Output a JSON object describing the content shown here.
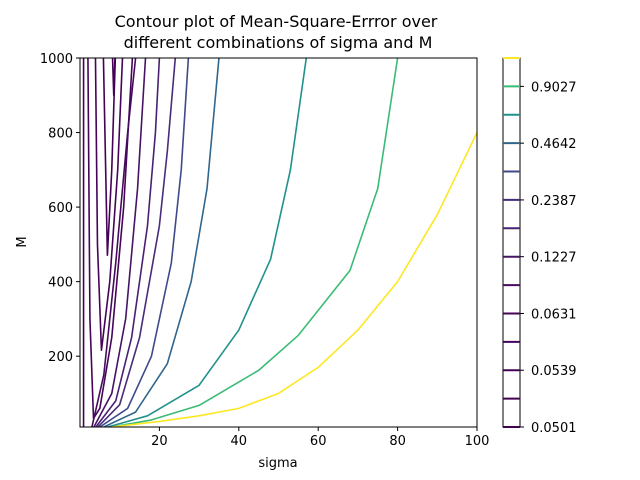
{
  "chart_data": {
    "type": "contour",
    "title": [
      "Contour plot of Mean-Square-Errror over",
      "different combinations of sigma and M"
    ],
    "xlabel": "sigma",
    "ylabel": "M",
    "xlim": [
      0,
      100
    ],
    "xticks": [
      20,
      40,
      60,
      80,
      100
    ],
    "ylim": [
      10,
      1000
    ],
    "yticks": [
      200,
      400,
      600,
      800,
      1000
    ],
    "colorbar_ticks": [
      0.0501,
      0.0539,
      0.0631,
      0.1227,
      0.2387,
      0.4642,
      0.9027
    ],
    "series": [
      {
        "level": 0.0501,
        "color": "#440154",
        "x": [
          0.9,
          0.9
        ],
        "y": [
          10,
          1000
        ]
      },
      {
        "level": 0.052,
        "color": "#440255",
        "x": [
          8.2,
          8.5,
          8.8
        ],
        "y": [
          1000,
          900,
          1000
        ]
      },
      {
        "level": 0.0539,
        "color": "#440256",
        "x": [
          5.9,
          6.9,
          8.0,
          8.9
        ],
        "y": [
          1000,
          471,
          700,
          1000
        ]
      },
      {
        "level": 0.058,
        "color": "#450457",
        "x": [
          3.9,
          4.4,
          5.4,
          7.5,
          9.5,
          10.7
        ],
        "y": [
          1000,
          500,
          216,
          400,
          700,
          1000
        ]
      },
      {
        "level": 0.0631,
        "color": "#450559",
        "x": [
          2,
          2.5,
          3.4,
          5,
          8,
          11,
          13.2
        ],
        "y": [
          1000,
          300,
          33,
          60,
          250,
          600,
          1000
        ]
      },
      {
        "level": 0.088,
        "color": "#460b5e",
        "x": [
          3,
          6,
          9,
          12,
          14
        ],
        "y": [
          10,
          150,
          450,
          800,
          1000
        ]
      },
      {
        "level": 0.1227,
        "color": "#471365",
        "x": [
          3.5,
          8,
          11.5,
          14.5,
          16.5
        ],
        "y": [
          10,
          100,
          300,
          650,
          1000
        ]
      },
      {
        "level": 0.1711,
        "color": "#482173",
        "x": [
          4,
          9,
          13,
          17,
          19,
          20
        ],
        "y": [
          10,
          80,
          250,
          550,
          800,
          1000
        ]
      },
      {
        "level": 0.2387,
        "color": "#472c7a",
        "x": [
          4.5,
          10,
          15,
          20,
          22,
          24
        ],
        "y": [
          10,
          70,
          250,
          550,
          750,
          1000
        ]
      },
      {
        "level": 0.3329,
        "color": "#3e4a89",
        "x": [
          5,
          12,
          18,
          23,
          25.5,
          27.3
        ],
        "y": [
          10,
          60,
          200,
          450,
          700,
          1000
        ]
      },
      {
        "level": 0.4642,
        "color": "#31668e",
        "x": [
          6,
          14,
          22,
          28,
          32,
          35
        ],
        "y": [
          10,
          50,
          180,
          400,
          650,
          1000
        ]
      },
      {
        "level": 0.6474,
        "color": "#21918c",
        "x": [
          7,
          17,
          30,
          40,
          48,
          53,
          57
        ],
        "y": [
          10,
          40,
          122,
          270,
          460,
          700,
          1000
        ]
      },
      {
        "level": 0.9027,
        "color": "#3bbb75",
        "x": [
          8,
          18,
          30,
          45,
          55,
          68,
          75,
          80
        ],
        "y": [
          10,
          29,
          68,
          162,
          256,
          430,
          650,
          1000
        ]
      },
      {
        "level": 1.259,
        "color": "#fde725",
        "x": [
          8,
          20,
          30,
          40,
          50,
          60,
          70,
          80,
          90,
          100
        ],
        "y": [
          10,
          25,
          40,
          60,
          100,
          170,
          270,
          400,
          580,
          800
        ]
      }
    ]
  }
}
